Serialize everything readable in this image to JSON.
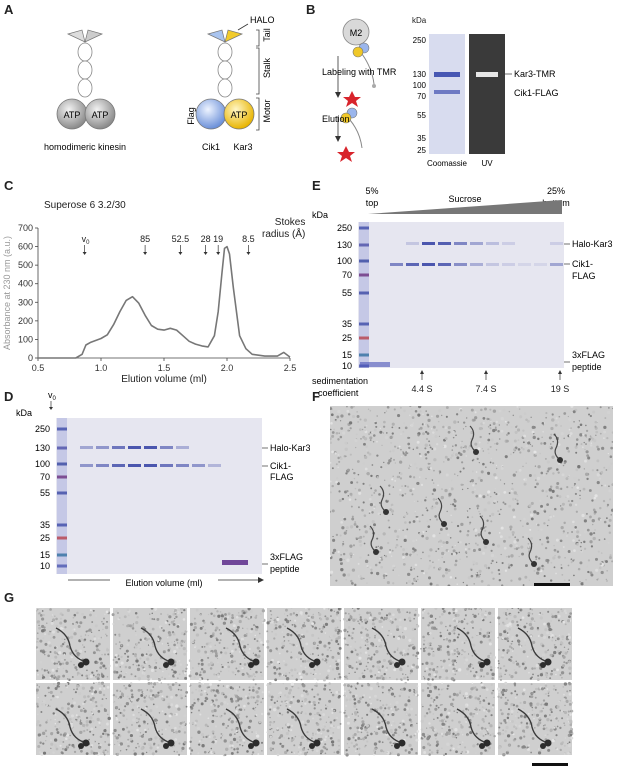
{
  "panels": {
    "a": "A",
    "b": "B",
    "c": "C",
    "d": "D",
    "e": "E",
    "f": "F",
    "g": "G"
  },
  "panel_a": {
    "left_caption": "homodimeric kinesin",
    "atp": "ATP",
    "halo": "HALO",
    "flag": "Flag",
    "cik1": "Cik1",
    "kar3": "Kar3",
    "tail": "Tail",
    "stalk": "Stalk",
    "motor": "Motor"
  },
  "panel_b": {
    "m2": "M2",
    "labeling": "Labeling with TMR",
    "elution": "Elution",
    "kda": "kDa",
    "markers": [
      "250",
      "130",
      "100",
      "70",
      "55",
      "35",
      "25"
    ],
    "kar3_tmr": "Kar3-TMR",
    "cik1_flag": "Cik1-FLAG",
    "coomassie": "Coomassie",
    "uv": "UV"
  },
  "panel_c": {
    "column": "Superose 6 3.2/30",
    "v0": "v",
    "v0_sub": "0",
    "stokes_label_1": "Stokes",
    "stokes_label_2": "radius (Å)",
    "stokes_markers": [
      {
        "label": "85",
        "x": 1.35
      },
      {
        "label": "52.5",
        "x": 1.63
      },
      {
        "label": "28",
        "x": 1.83
      },
      {
        "label": "19",
        "x": 1.93
      },
      {
        "label": "8.5",
        "x": 2.17
      }
    ],
    "v0_x": 0.87
  },
  "chart_data": {
    "type": "line",
    "xlabel": "Elution volume (ml)",
    "ylabel": "Absorbance at 230 nm (a.u.)",
    "xlim": [
      0.5,
      2.5
    ],
    "ylim": [
      0,
      700
    ],
    "xticks": [
      "0.5",
      "1.0",
      "1.5",
      "2.0",
      "2.5"
    ],
    "yticks": [
      "0",
      "100",
      "200",
      "300",
      "400",
      "500",
      "600",
      "700"
    ],
    "x": [
      0.5,
      0.8,
      0.85,
      0.88,
      0.92,
      1.0,
      1.05,
      1.1,
      1.15,
      1.2,
      1.25,
      1.3,
      1.35,
      1.4,
      1.45,
      1.5,
      1.55,
      1.6,
      1.65,
      1.7,
      1.75,
      1.8,
      1.85,
      1.9,
      1.93,
      1.96,
      1.98,
      2.0,
      2.02,
      2.05,
      2.1,
      2.15,
      2.2,
      2.3,
      2.4,
      2.45,
      2.5
    ],
    "y": [
      0,
      0,
      20,
      70,
      85,
      105,
      125,
      180,
      250,
      310,
      330,
      295,
      230,
      175,
      155,
      150,
      160,
      150,
      120,
      90,
      75,
      65,
      60,
      120,
      250,
      460,
      590,
      600,
      560,
      380,
      120,
      50,
      20,
      10,
      10,
      30,
      5
    ]
  },
  "panel_d": {
    "kda": "kDa",
    "markers": [
      "250",
      "130",
      "100",
      "70",
      "55",
      "35",
      "25",
      "15",
      "10"
    ],
    "halo_kar3": "Halo-Kar3",
    "cik1_flag_1": "Cik1-",
    "cik1_flag_2": "FLAG",
    "flag_peptide_1": "3xFLAG",
    "flag_peptide_2": "peptide",
    "xaxis": "Elution volume (ml)",
    "v0": "v",
    "v0_sub": "0"
  },
  "panel_e": {
    "pct_top": "5%",
    "top": "top",
    "sucrose": "Sucrose",
    "pct_bottom": "25%",
    "bottom": "bottom",
    "kda": "kDa",
    "markers": [
      "250",
      "130",
      "100",
      "70",
      "55",
      "35",
      "25",
      "15",
      "10"
    ],
    "halo_kar3": "Halo-Kar3",
    "cik1_flag_1": "Cik1-",
    "cik1_flag_2": "FLAG",
    "flag_peptide_1": "3xFLAG",
    "flag_peptide_2": "peptide",
    "sed_1": "sedimentation",
    "sed_2": "coefficient",
    "sed_markers": [
      "4.4 S",
      "7.4 S",
      "19 S"
    ]
  }
}
